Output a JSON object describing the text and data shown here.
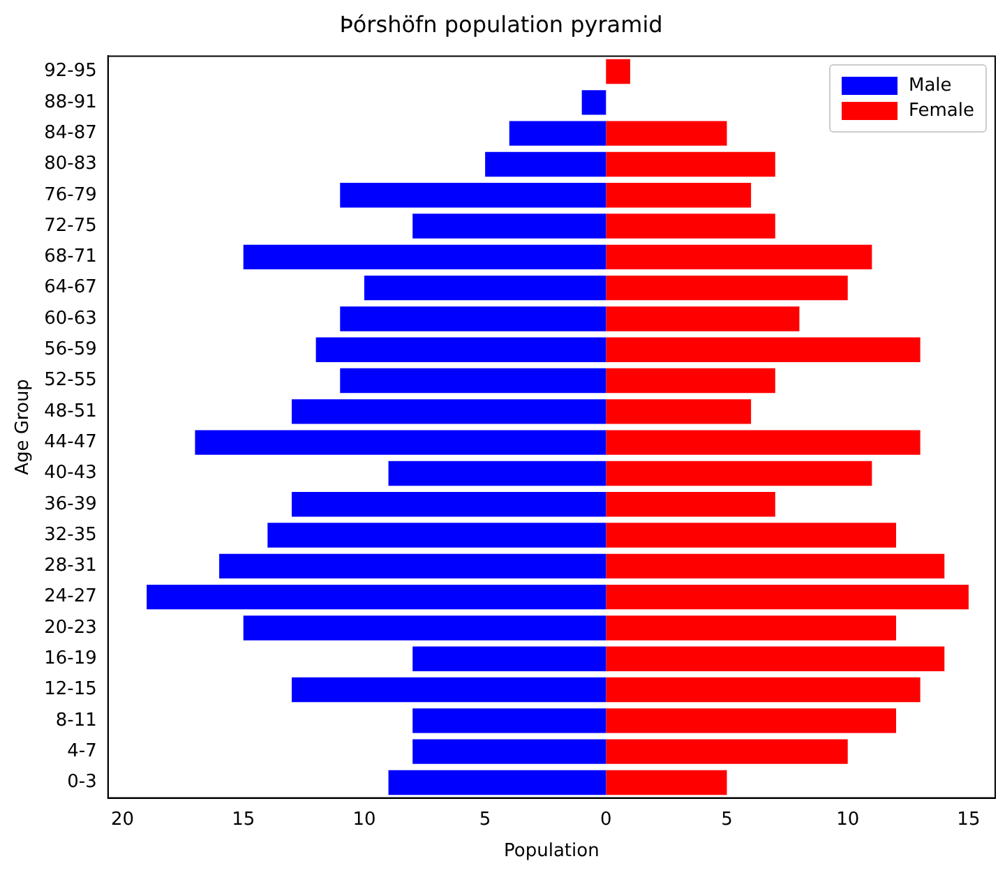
{
  "chart_data": {
    "type": "bar",
    "orientation": "horizontal",
    "stacked": true,
    "title": "Þórshöfn population pyramid",
    "xlabel": "Population",
    "ylabel": "Age Group",
    "categories": [
      "92-95",
      "88-91",
      "84-87",
      "80-83",
      "76-79",
      "72-75",
      "68-71",
      "64-67",
      "60-63",
      "56-59",
      "52-55",
      "48-51",
      "44-47",
      "40-43",
      "36-39",
      "32-35",
      "28-31",
      "24-27",
      "20-23",
      "16-19",
      "12-15",
      "8-11",
      "4-7",
      "0-3"
    ],
    "series": [
      {
        "name": "Male",
        "color": "#0000ff",
        "values": [
          0,
          -1,
          -4,
          -5,
          -11,
          -8,
          -15,
          -10,
          -11,
          -12,
          -11,
          -13,
          -17,
          -9,
          -13,
          -14,
          -16,
          -19,
          -15,
          -8,
          -13,
          -8,
          -8,
          -9
        ]
      },
      {
        "name": "Female",
        "color": "#ff0000",
        "values": [
          1,
          0,
          5,
          7,
          6,
          7,
          11,
          10,
          8,
          13,
          7,
          6,
          13,
          11,
          7,
          12,
          14,
          15,
          12,
          14,
          13,
          12,
          10,
          5
        ]
      }
    ],
    "xlim": [
      -20.6,
      16.1
    ],
    "xticks": [
      {
        "value": -20,
        "label": "20"
      },
      {
        "value": -15,
        "label": "15"
      },
      {
        "value": -10,
        "label": "10"
      },
      {
        "value": -5,
        "label": "5"
      },
      0,
      5,
      10,
      15
    ],
    "legend": "top right",
    "grid": false
  }
}
